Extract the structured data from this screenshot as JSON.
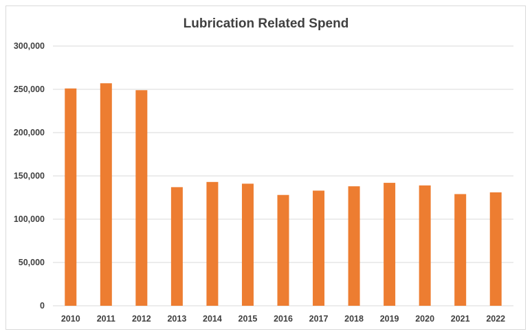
{
  "chart_data": {
    "type": "bar",
    "title": "Lubrication Related Spend",
    "xlabel": "",
    "ylabel": "",
    "categories": [
      "2010",
      "2011",
      "2012",
      "2013",
      "2014",
      "2015",
      "2016",
      "2017",
      "2018",
      "2019",
      "2020",
      "2021",
      "2022"
    ],
    "series": [
      {
        "values": [
          251000,
          257000,
          249000,
          137000,
          143000,
          141000,
          128000,
          133000,
          138000,
          142000,
          139000,
          129000,
          131000
        ]
      }
    ],
    "ylim": [
      0,
      300000
    ],
    "yticks": [
      0,
      50000,
      100000,
      150000,
      200000,
      250000,
      300000
    ],
    "ytick_labels": [
      "0",
      "50,000",
      "100,000",
      "150,000",
      "200,000",
      "250,000",
      "300,000"
    ],
    "grid": true,
    "legend": "none",
    "bar_color": "#ED7D31",
    "grid_color": "#D9D9D9"
  }
}
